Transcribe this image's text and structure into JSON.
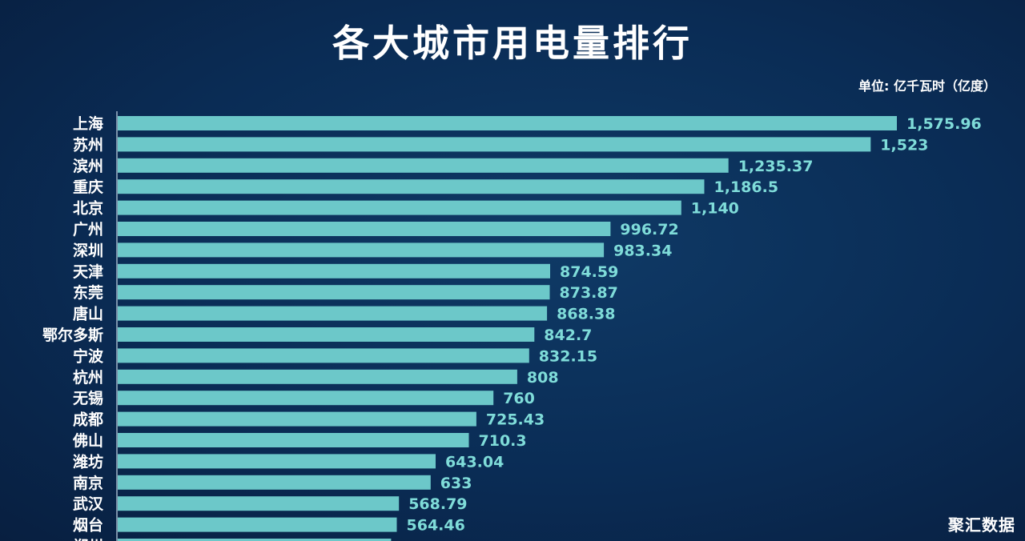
{
  "title": "各大城市用电量排行",
  "unit_note": "单位: 亿千瓦时（亿度）",
  "watermark": "聚汇数据",
  "colors": {
    "background": "#0a2c55",
    "bar": "#6cc8c9",
    "value_label": "#7fdcd9",
    "text": "#ffffff"
  },
  "chart_data": {
    "type": "bar",
    "orientation": "horizontal",
    "title": "各大城市用电量排行",
    "unit": "单位: 亿千瓦时（亿度）",
    "categories": [
      "上海",
      "苏州",
      "滨州",
      "重庆",
      "北京",
      "广州",
      "深圳",
      "天津",
      "东莞",
      "唐山",
      "鄂尔多斯",
      "宁波",
      "杭州",
      "无锡",
      "成都",
      "佛山",
      "潍坊",
      "南京",
      "武汉",
      "烟台",
      "郑州"
    ],
    "values": [
      1575.96,
      1523,
      1235.37,
      1186.5,
      1140,
      996.72,
      983.34,
      874.59,
      873.87,
      868.38,
      842.7,
      832.15,
      808,
      760,
      725.43,
      710.3,
      643.04,
      633,
      568.79,
      564.46,
      553
    ],
    "value_labels": [
      "1,575.96",
      "1,523",
      "1,235.37",
      "1,186.5",
      "1,140",
      "996.72",
      "983.34",
      "874.59",
      "873.87",
      "868.38",
      "842.7",
      "832.15",
      "808",
      "760",
      "725.43",
      "710.3",
      "643.04",
      "633",
      "568.79",
      "564.46",
      ""
    ],
    "xlim": [
      0,
      1575.96
    ],
    "grid": false,
    "legend": "none"
  }
}
